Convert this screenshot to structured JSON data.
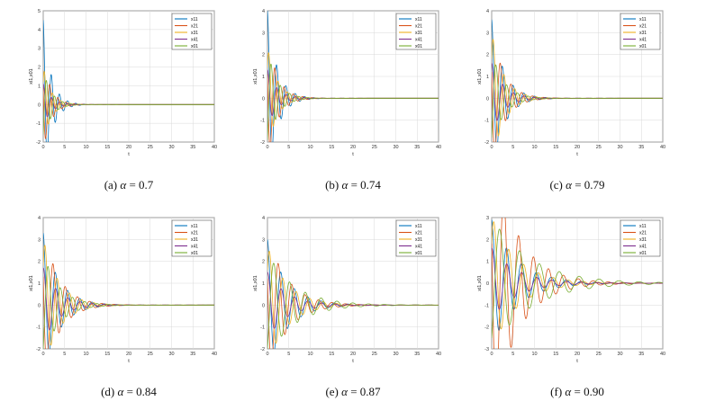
{
  "figure": {
    "colors": {
      "x11": "#0072bd",
      "x21": "#d95319",
      "x31": "#edb120",
      "x41": "#7e2f8e",
      "x01": "#77ac30"
    }
  },
  "chart_data": [
    {
      "type": "line",
      "caption": {
        "tag": "(a)",
        "symbol": "α",
        "eq": "= 0.7"
      },
      "alpha": 0.7,
      "xlabel": "t",
      "ylabel": "xi1,x01",
      "xlim": [
        0,
        40
      ],
      "ylim": [
        -2,
        5
      ],
      "xticks": [
        0,
        5,
        10,
        15,
        20,
        25,
        30,
        35,
        40
      ],
      "yticks": [
        -2,
        -1,
        0,
        1,
        2,
        3,
        4,
        5
      ],
      "grid": true,
      "legend_position": "top-right",
      "series": [
        {
          "name": "x11",
          "initial": 4.5,
          "omega": 3.3,
          "decay": 0.55,
          "phase": 0.0
        },
        {
          "name": "x21",
          "initial": 0.9,
          "omega": 3.3,
          "decay": 0.55,
          "phase": 1.2
        },
        {
          "name": "x31",
          "initial": 1.2,
          "omega": 3.3,
          "decay": 0.55,
          "phase": 2.2
        },
        {
          "name": "x41",
          "initial": 1.1,
          "omega": 3.3,
          "decay": 0.55,
          "phase": 3.0
        },
        {
          "name": "x01",
          "initial": -1.6,
          "omega": 3.3,
          "decay": 0.55,
          "phase": 0.6
        }
      ]
    },
    {
      "type": "line",
      "caption": {
        "tag": "(b)",
        "symbol": "α",
        "eq": "= 0.74"
      },
      "alpha": 0.74,
      "xlabel": "t",
      "ylabel": "xi1,x01",
      "xlim": [
        0,
        40
      ],
      "ylim": [
        -2,
        4
      ],
      "xticks": [
        0,
        5,
        10,
        15,
        20,
        25,
        30,
        35,
        40
      ],
      "yticks": [
        -2,
        -1,
        0,
        1,
        2,
        3,
        4
      ],
      "grid": true,
      "legend_position": "top-right",
      "series": [
        {
          "name": "x11",
          "initial": 4.0,
          "omega": 2.9,
          "decay": 0.45,
          "phase": 0.0
        },
        {
          "name": "x21",
          "initial": 1.1,
          "omega": 2.9,
          "decay": 0.45,
          "phase": 1.2
        },
        {
          "name": "x31",
          "initial": 1.4,
          "omega": 2.9,
          "decay": 0.45,
          "phase": 2.2
        },
        {
          "name": "x41",
          "initial": 1.3,
          "omega": 2.9,
          "decay": 0.45,
          "phase": 3.0
        },
        {
          "name": "x01",
          "initial": -1.9,
          "omega": 2.9,
          "decay": 0.45,
          "phase": 0.6
        }
      ]
    },
    {
      "type": "line",
      "caption": {
        "tag": "(c)",
        "symbol": "α",
        "eq": "= 0.79"
      },
      "alpha": 0.79,
      "xlabel": "t",
      "ylabel": "xi1,x01",
      "xlim": [
        0,
        40
      ],
      "ylim": [
        -2,
        4
      ],
      "xticks": [
        0,
        5,
        10,
        15,
        20,
        25,
        30,
        35,
        40
      ],
      "yticks": [
        -2,
        -1,
        0,
        1,
        2,
        3,
        4
      ],
      "grid": true,
      "legend_position": "top-right",
      "series": [
        {
          "name": "x11",
          "initial": 3.6,
          "omega": 2.5,
          "decay": 0.36,
          "phase": 0.0
        },
        {
          "name": "x21",
          "initial": 1.2,
          "omega": 2.5,
          "decay": 0.36,
          "phase": 1.2
        },
        {
          "name": "x31",
          "initial": 1.8,
          "omega": 2.5,
          "decay": 0.36,
          "phase": 2.2
        },
        {
          "name": "x41",
          "initial": 1.6,
          "omega": 2.5,
          "decay": 0.36,
          "phase": 3.0
        },
        {
          "name": "x01",
          "initial": -1.8,
          "omega": 2.5,
          "decay": 0.36,
          "phase": 0.6
        }
      ]
    },
    {
      "type": "line",
      "caption": {
        "tag": "(d)",
        "symbol": "α",
        "eq": "= 0.84"
      },
      "alpha": 0.84,
      "xlabel": "t",
      "ylabel": "xi1,x01",
      "xlim": [
        0,
        40
      ],
      "ylim": [
        -2,
        4
      ],
      "xticks": [
        0,
        5,
        10,
        15,
        20,
        25,
        30,
        35,
        40
      ],
      "yticks": [
        -2,
        -1,
        0,
        1,
        2,
        3,
        4
      ],
      "grid": true,
      "legend_position": "top-right",
      "series": [
        {
          "name": "x11",
          "initial": 3.3,
          "omega": 2.2,
          "decay": 0.28,
          "phase": 0.0
        },
        {
          "name": "x21",
          "initial": 1.3,
          "omega": 2.2,
          "decay": 0.28,
          "phase": 1.2
        },
        {
          "name": "x31",
          "initial": 1.8,
          "omega": 2.2,
          "decay": 0.28,
          "phase": 2.2
        },
        {
          "name": "x41",
          "initial": 1.7,
          "omega": 2.2,
          "decay": 0.28,
          "phase": 3.0
        },
        {
          "name": "x01",
          "initial": -2.0,
          "omega": 2.2,
          "decay": 0.28,
          "phase": 0.6
        }
      ]
    },
    {
      "type": "line",
      "caption": {
        "tag": "(e)",
        "symbol": "α",
        "eq": "= 0.87"
      },
      "alpha": 0.87,
      "xlabel": "t",
      "ylabel": "xi1,x01",
      "xlim": [
        0,
        40
      ],
      "ylim": [
        -2,
        4
      ],
      "xticks": [
        0,
        5,
        10,
        15,
        20,
        25,
        30,
        35,
        40
      ],
      "yticks": [
        -2,
        -1,
        0,
        1,
        2,
        3,
        4
      ],
      "grid": true,
      "legend_position": "top-right",
      "series": [
        {
          "name": "x11",
          "initial": 3.0,
          "omega": 2.0,
          "decay": 0.22,
          "phase": 0.0
        },
        {
          "name": "x21",
          "initial": 1.2,
          "omega": 2.0,
          "decay": 0.22,
          "phase": 1.2
        },
        {
          "name": "x31",
          "initial": 1.6,
          "omega": 2.0,
          "decay": 0.22,
          "phase": 2.2
        },
        {
          "name": "x41",
          "initial": 1.5,
          "omega": 2.0,
          "decay": 0.22,
          "phase": 3.0
        },
        {
          "name": "x01",
          "initial": -2.0,
          "omega": 1.7,
          "decay": 0.16,
          "phase": 0.6
        }
      ]
    },
    {
      "type": "line",
      "caption": {
        "tag": "(f)",
        "symbol": "α",
        "eq": "= 0.90"
      },
      "alpha": 0.9,
      "xlabel": "t",
      "ylabel": "xi1,x01",
      "xlim": [
        0,
        40
      ],
      "ylim": [
        -3,
        3
      ],
      "xticks": [
        0,
        5,
        10,
        15,
        20,
        25,
        30,
        35,
        40
      ],
      "yticks": [
        -3,
        -2,
        -1,
        0,
        1,
        2,
        3
      ],
      "grid": true,
      "legend_position": "top-right",
      "series": [
        {
          "name": "x11",
          "initial": 2.9,
          "omega": 1.8,
          "decay": 0.17,
          "phase": 0.0
        },
        {
          "name": "x21",
          "initial": 2.3,
          "omega": 1.8,
          "decay": 0.17,
          "phase": 1.2
        },
        {
          "name": "x31",
          "initial": 1.8,
          "omega": 1.8,
          "decay": 0.17,
          "phase": 2.2
        },
        {
          "name": "x41",
          "initial": 1.6,
          "omega": 1.8,
          "decay": 0.17,
          "phase": 3.0
        },
        {
          "name": "x01",
          "initial": -2.5,
          "omega": 1.35,
          "decay": 0.11,
          "phase": 0.6
        }
      ]
    }
  ]
}
